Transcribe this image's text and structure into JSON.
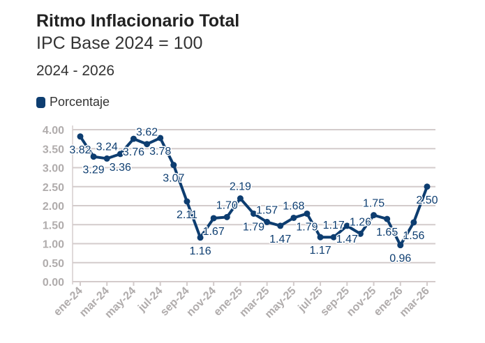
{
  "title": "Ritmo Inflacionario Total",
  "subtitle": "IPC Base 2024 = 100",
  "period": "2024 - 2026",
  "chart_data": {
    "type": "line",
    "title": "Ritmo Inflacionario Total",
    "subtitle": "IPC Base 2024 = 100",
    "ylim": [
      0,
      4
    ],
    "yticks": [
      "0.00",
      "0.50",
      "1.00",
      "1.50",
      "2.00",
      "2.50",
      "3.00",
      "3.50",
      "4.00"
    ],
    "xtick_labels": [
      "ene-24",
      "mar-24",
      "may-24",
      "jul-24",
      "sep-24",
      "nov-24",
      "ene-25",
      "mar-25",
      "may-25",
      "jul-25",
      "sep-25",
      "nov-25",
      "ene-26",
      "mar-26"
    ],
    "grid": true,
    "legend_position": "top-left",
    "x": [
      "ene-24",
      "feb-24",
      "mar-24",
      "abr-24",
      "may-24",
      "jun-24",
      "jul-24",
      "ago-24",
      "sep-24",
      "oct-24",
      "nov-24",
      "dic-24",
      "ene-25",
      "feb-25",
      "mar-25",
      "abr-25",
      "may-25",
      "jun-25",
      "jul-25",
      "ago-25",
      "sep-25",
      "oct-25",
      "nov-25",
      "dic-25",
      "ene-26",
      "feb-26",
      "mar-26"
    ],
    "series": [
      {
        "name": "Porcentaje",
        "color": "#0d3d70",
        "values": [
          3.82,
          3.29,
          3.24,
          3.36,
          3.76,
          3.62,
          3.78,
          3.07,
          2.11,
          1.16,
          1.67,
          1.7,
          2.19,
          1.79,
          1.57,
          1.47,
          1.68,
          1.79,
          1.17,
          1.17,
          1.47,
          1.26,
          1.75,
          1.65,
          0.96,
          1.56,
          2.5
        ]
      }
    ]
  }
}
